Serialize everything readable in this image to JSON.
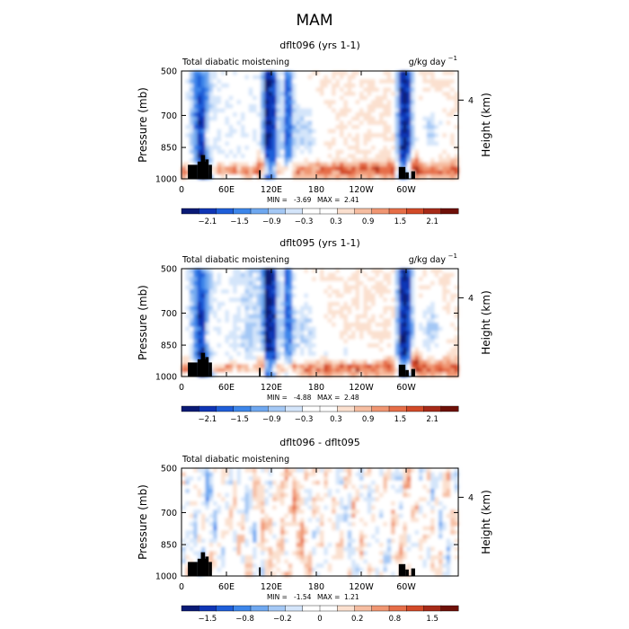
{
  "page_title": "MAM",
  "colors": {
    "blue_scale": [
      "#0a1a75",
      "#0f35b5",
      "#1f5ed9",
      "#3d86ea",
      "#6fa8f0",
      "#a4c8f5",
      "#d4e5fa"
    ],
    "red_scale": [
      "#fbe0cf",
      "#f6bda1",
      "#f09672",
      "#e66e48",
      "#d24a28",
      "#a62a18",
      "#6e1008"
    ],
    "terrain": "#000000"
  },
  "chart_data": [
    {
      "type": "heatmap",
      "title": "dflt096 (yrs 1-1)",
      "left_label": "Total diabatic moistening",
      "units": "g/kg day",
      "units_exponent": "−1",
      "ylabel": "Pressure (mb)",
      "ylabel_right": "Height (km)",
      "y_ticks": [
        "500",
        "700",
        "850",
        "1000"
      ],
      "y_right_ticks": [
        "4"
      ],
      "x_ticks": [
        "0",
        "60E",
        "120E",
        "180",
        "120W",
        "60W"
      ],
      "ylim": [
        1000,
        500
      ],
      "xlim": [
        0,
        360
      ],
      "min_label": "MIN =",
      "min_value": "-3.69",
      "max_label": "MAX =",
      "max_value": "2.41",
      "colorbar_ticks": [
        "−2.1",
        "−1.5",
        "−0.9",
        "−0.3",
        "0.3",
        "0.9",
        "1.5",
        "2.1"
      ]
    },
    {
      "type": "heatmap",
      "title": "dflt095 (yrs 1-1)",
      "left_label": "Total diabatic moistening",
      "units": "g/kg day",
      "units_exponent": "−1",
      "ylabel": "Pressure (mb)",
      "ylabel_right": "Height (km)",
      "y_ticks": [
        "500",
        "700",
        "850",
        "1000"
      ],
      "y_right_ticks": [
        "4"
      ],
      "x_ticks": [
        "0",
        "60E",
        "120E",
        "180",
        "120W",
        "60W"
      ],
      "ylim": [
        1000,
        500
      ],
      "xlim": [
        0,
        360
      ],
      "min_label": "MIN =",
      "min_value": "-4.88",
      "max_label": "MAX =",
      "max_value": "2.48",
      "colorbar_ticks": [
        "−2.1",
        "−1.5",
        "−0.9",
        "−0.3",
        "0.3",
        "0.9",
        "1.5",
        "2.1"
      ]
    },
    {
      "type": "heatmap",
      "title": "dflt096 - dflt095",
      "left_label": "Total diabatic moistening",
      "units": "",
      "units_exponent": "",
      "ylabel": "Pressure (mb)",
      "ylabel_right": "Height (km)",
      "y_ticks": [
        "500",
        "700",
        "850",
        "1000"
      ],
      "y_right_ticks": [
        "4"
      ],
      "x_ticks": [
        "0",
        "60E",
        "120E",
        "180",
        "120W",
        "60W"
      ],
      "ylim": [
        1000,
        500
      ],
      "xlim": [
        0,
        360
      ],
      "min_label": "MIN =",
      "min_value": "-1.54",
      "max_label": "MAX =",
      "max_value": "1.21",
      "colorbar_ticks": [
        "−1.5",
        "−0.8",
        "−0.2",
        "0",
        "0.2",
        "0.8",
        "1.5"
      ]
    }
  ]
}
